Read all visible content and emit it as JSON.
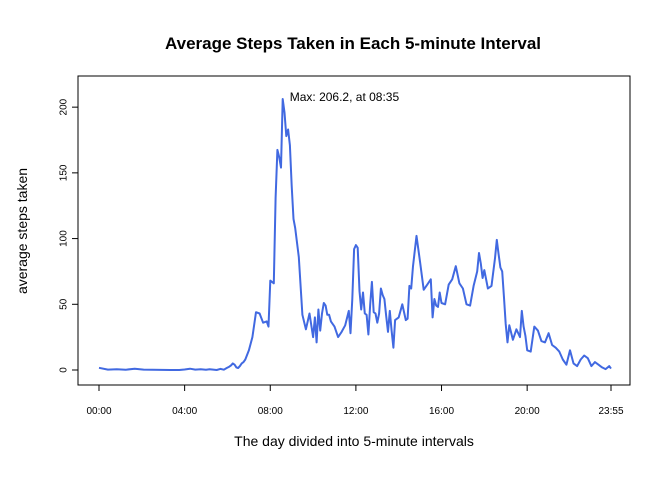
{
  "chart_data": {
    "type": "line",
    "title": "Average Steps Taken in Each 5-minute Interval",
    "xlabel": "The day divided into 5-minute intervals",
    "ylabel": "average steps taken",
    "x_unit": "minutes since midnight",
    "xlim": [
      0,
      1435
    ],
    "ylim": [
      0,
      206.2
    ],
    "grid": false,
    "legend": "none",
    "line_color": "#4169E1",
    "x_tick_values": [
      0,
      240,
      480,
      720,
      960,
      1200,
      1435
    ],
    "x_tick_labels": [
      "00:00",
      "04:00",
      "08:00",
      "12:00",
      "16:00",
      "20:00",
      "23:55"
    ],
    "y_ticks": [
      0,
      50,
      100,
      150,
      200
    ],
    "annotation": {
      "text": "Max: 206.2, at 08:35",
      "x": 515,
      "y": 206.2
    },
    "series": [
      {
        "x": [
          0,
          25,
          50,
          75,
          100,
          125,
          150,
          175,
          200,
          225,
          240,
          255,
          270,
          285,
          300,
          310,
          320,
          330,
          340,
          350,
          358,
          365,
          370,
          375,
          380,
          385,
          390,
          395,
          400,
          405,
          410,
          420,
          430,
          440,
          450,
          460,
          470,
          475,
          480,
          485,
          490,
          495,
          500,
          505,
          510,
          515,
          520,
          525,
          530,
          535,
          540,
          545,
          550,
          560,
          570,
          580,
          590,
          600,
          605,
          610,
          615,
          620,
          625,
          630,
          635,
          640,
          645,
          650,
          660,
          670,
          680,
          690,
          700,
          705,
          710,
          715,
          720,
          725,
          730,
          735,
          740,
          745,
          750,
          755,
          760,
          765,
          770,
          775,
          780,
          785,
          790,
          795,
          800,
          805,
          810,
          815,
          820,
          825,
          830,
          840,
          850,
          860,
          865,
          870,
          875,
          880,
          890,
          900,
          910,
          920,
          930,
          935,
          940,
          945,
          950,
          955,
          960,
          970,
          980,
          990,
          1000,
          1010,
          1020,
          1030,
          1040,
          1050,
          1060,
          1065,
          1070,
          1075,
          1080,
          1090,
          1100,
          1110,
          1115,
          1120,
          1125,
          1130,
          1135,
          1140,
          1145,
          1150,
          1160,
          1170,
          1180,
          1185,
          1190,
          1195,
          1200,
          1210,
          1220,
          1230,
          1240,
          1250,
          1260,
          1270,
          1280,
          1290,
          1300,
          1310,
          1320,
          1330,
          1340,
          1350,
          1360,
          1370,
          1380,
          1390,
          1400,
          1410,
          1420,
          1430,
          1435
        ],
        "y": [
          1.7,
          0.3,
          0.5,
          0.2,
          1.0,
          0.3,
          0.2,
          0.1,
          0.0,
          0.0,
          0.4,
          1.0,
          0.3,
          0.5,
          0.2,
          0.6,
          0.3,
          0.0,
          0.8,
          0.2,
          1.5,
          2.5,
          3.5,
          5.0,
          4.0,
          2.0,
          1.5,
          3.0,
          5.0,
          6.0,
          8.0,
          15.0,
          25.0,
          44.0,
          43.0,
          36.0,
          37.0,
          33.0,
          68.0,
          67.0,
          66.0,
          131.0,
          167.5,
          162.0,
          154.0,
          206.2,
          195.9,
          178.0,
          183.0,
          171.0,
          140.0,
          115.0,
          108.0,
          86.0,
          42.0,
          31.0,
          43.0,
          25.0,
          40.0,
          21.0,
          46.0,
          30.0,
          43.0,
          51.0,
          49.0,
          42.0,
          42.0,
          37.0,
          33.0,
          25.0,
          29.0,
          34.0,
          45.0,
          28.0,
          54.0,
          92.0,
          95.0,
          93.0,
          60.0,
          46.0,
          59.0,
          43.0,
          42.0,
          27.0,
          50.0,
          67.0,
          44.0,
          43.0,
          36.0,
          43.0,
          62.0,
          57.0,
          54.0,
          41.0,
          29.0,
          45.0,
          30.0,
          17.0,
          38.0,
          40.0,
          50.0,
          38.0,
          39.0,
          64.0,
          62.0,
          79.0,
          102.0,
          82.0,
          61.0,
          65.0,
          69.0,
          40.0,
          54.0,
          49.0,
          48.0,
          59.0,
          51.0,
          50.0,
          65.0,
          69.0,
          79.0,
          66.0,
          62.0,
          50.0,
          49.0,
          64.0,
          75.0,
          89.0,
          81.0,
          70.0,
          76.0,
          62.0,
          64.0,
          85.0,
          99.0,
          88.0,
          78.0,
          75.0,
          55.0,
          35.0,
          21.0,
          34.0,
          23.0,
          31.0,
          25.0,
          45.0,
          33.0,
          26.0,
          15.0,
          14.0,
          33.0,
          30.0,
          22.0,
          21.0,
          28.0,
          19.0,
          17.0,
          14.0,
          8.0,
          4.0,
          15.0,
          5.0,
          3.0,
          8.0,
          11.0,
          9.0,
          3.0,
          6.0,
          4.0,
          2.0,
          0.7,
          3.0,
          1.1
        ]
      }
    ]
  }
}
